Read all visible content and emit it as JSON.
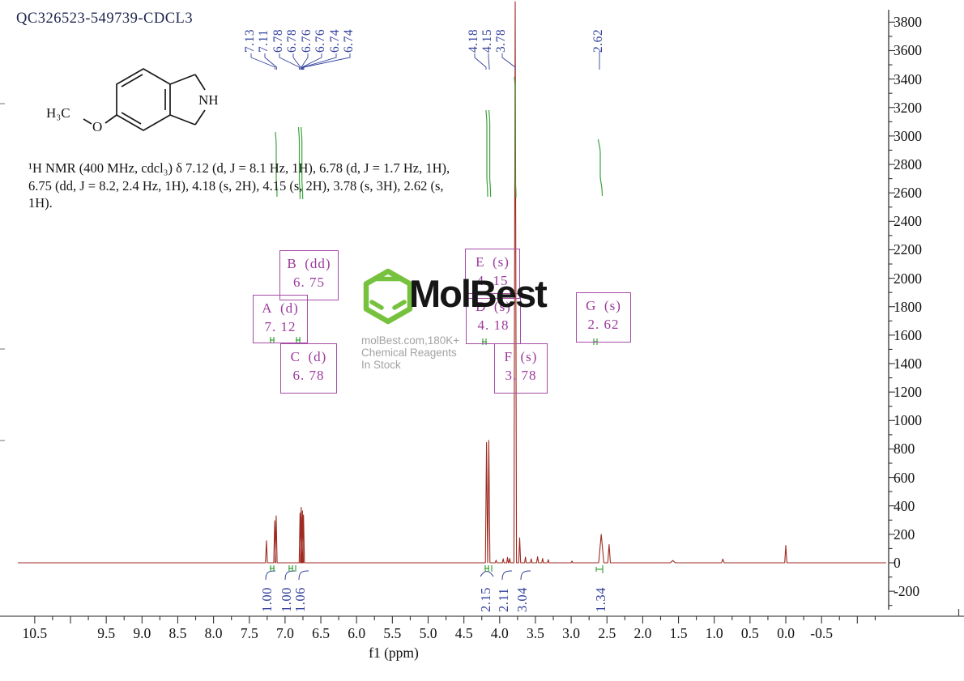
{
  "title": "QC326523-549739-CDCL3",
  "structure": {
    "name-hint": "5-methoxy-2,3-dihydro-1H-isoindole",
    "atom_labels": {
      "methyl": "H₃C",
      "oxygen": "O",
      "amine": "NH"
    }
  },
  "nmr_text": {
    "lines": [
      "¹H NMR (400 MHz, cdcl₃) δ 7.12 (d, J = 8.1 Hz, 1H), 6.78 (d, J = 1.7 Hz, 1H),",
      "6.75 (dd, J = 8.2, 2.4 Hz, 1H), 4.18 (s, 2H), 4.15 (s, 2H), 3.78 (s, 3H), 2.62 (s,",
      "1H)."
    ]
  },
  "peak_labels": {
    "aromatic": [
      "7.13",
      "7.11",
      "6.78",
      "6.78",
      "6.76",
      "6.76",
      "6.74",
      "6.74"
    ],
    "aliphatic": [
      "4.18",
      "4.15",
      "3.78"
    ],
    "amine": [
      "2.62"
    ]
  },
  "annotations": [
    {
      "letter": "A",
      "mult": "(d)",
      "shift": "7. 12"
    },
    {
      "letter": "B",
      "mult": "(dd)",
      "shift": "6. 75"
    },
    {
      "letter": "C",
      "mult": "(d)",
      "shift": "6. 78"
    },
    {
      "letter": "D",
      "mult": "(s)",
      "shift": "4. 18"
    },
    {
      "letter": "E",
      "mult": "(s)",
      "shift": "4. 15"
    },
    {
      "letter": "F",
      "mult": "(s)",
      "shift": "3. 78"
    },
    {
      "letter": "G",
      "mult": "(s)",
      "shift": "2. 62"
    }
  ],
  "watermark": {
    "name": "MolBest",
    "tagline": "molBest.com,180K+ Chemical Reagents In Stock",
    "logo_icon": "benzene-hexagon"
  },
  "axes": {
    "x_title": "f1 (ppm)",
    "x_ticks": [
      {
        "value": 10.5,
        "label": "10.5"
      },
      {
        "value": 9.5,
        "label": "9.5"
      },
      {
        "value": 9.0,
        "label": "9.0"
      },
      {
        "value": 8.5,
        "label": "8.5"
      },
      {
        "value": 8.0,
        "label": "8.0"
      },
      {
        "value": 7.5,
        "label": "7.5"
      },
      {
        "value": 7.0,
        "label": "7.0"
      },
      {
        "value": 6.5,
        "label": "6.5"
      },
      {
        "value": 6.0,
        "label": "6.0"
      },
      {
        "value": 5.5,
        "label": "5.5"
      },
      {
        "value": 5.0,
        "label": "5.0"
      },
      {
        "value": 4.5,
        "label": "4.5"
      },
      {
        "value": 4.0,
        "label": "4.0"
      },
      {
        "value": 3.5,
        "label": "3.5"
      },
      {
        "value": 3.0,
        "label": "3.0"
      },
      {
        "value": 2.5,
        "label": "2.5"
      },
      {
        "value": 2.0,
        "label": "2.0"
      },
      {
        "value": 1.5,
        "label": "1.5"
      },
      {
        "value": 1.0,
        "label": "1.0"
      },
      {
        "value": 0.5,
        "label": "0.5"
      },
      {
        "value": 0.0,
        "label": "0.0"
      },
      {
        "value": -0.5,
        "label": "-0.5"
      }
    ],
    "y_tick_labels": [
      "3800",
      "3600",
      "3400",
      "3200",
      "3000",
      "2800",
      "2600",
      "2400",
      "2200",
      "2000",
      "1800",
      "1600",
      "1400",
      "1200",
      "1000",
      "800",
      "600",
      "400",
      "200",
      "0",
      "-200"
    ]
  },
  "chart_data": {
    "type": "line",
    "title": "QC326523-549739-CDCL3",
    "xlabel": "f1 (ppm)",
    "x_axis": {
      "min": -1.45,
      "max": 11.0,
      "inverted": true,
      "major_tick": 0.5,
      "labeled_from": 10.5,
      "labeled_to": -0.5,
      "unlabeled_values": [
        10.0
      ]
    },
    "y_axis": {
      "min": -400,
      "max": 3800,
      "major_tick": 200,
      "minor_tick": 100
    },
    "peaks_reported": [
      {
        "label": "A",
        "shift": 7.12,
        "mult": "d",
        "J_Hz": [
          8.1
        ],
        "nH": 1
      },
      {
        "label": "C",
        "shift": 6.78,
        "mult": "d",
        "J_Hz": [
          1.7
        ],
        "nH": 1
      },
      {
        "label": "B",
        "shift": 6.75,
        "mult": "dd",
        "J_Hz": [
          8.2,
          2.4
        ],
        "nH": 1
      },
      {
        "label": "D",
        "shift": 4.18,
        "mult": "s",
        "J_Hz": [],
        "nH": 2
      },
      {
        "label": "E",
        "shift": 4.15,
        "mult": "s",
        "J_Hz": [],
        "nH": 2
      },
      {
        "label": "F",
        "shift": 3.78,
        "mult": "s",
        "J_Hz": [],
        "nH": 3
      },
      {
        "label": "G",
        "shift": 2.62,
        "mult": "s",
        "J_Hz": [],
        "nH": 1
      }
    ],
    "integrations": [
      {
        "value": "1.00",
        "ppm": 7.12
      },
      {
        "value": "1.00",
        "ppm": 6.78
      },
      {
        "value": "1.06",
        "ppm": 6.75
      },
      {
        "value": "2.15",
        "ppm": 4.18
      },
      {
        "value": "2.11",
        "ppm": 4.15
      },
      {
        "value": "3.04",
        "ppm": 3.78
      },
      {
        "value": "1.34",
        "ppm": 2.62
      }
    ],
    "trace_peaks": [
      {
        "ppm": 7.26,
        "intensity": 155,
        "w": 1.2
      },
      {
        "ppm": 7.145,
        "intensity": 295,
        "w": 1.2
      },
      {
        "ppm": 7.125,
        "intensity": 330,
        "w": 1.2
      },
      {
        "ppm": 6.79,
        "intensity": 350,
        "w": 1.1
      },
      {
        "ppm": 6.775,
        "intensity": 390,
        "w": 1.1
      },
      {
        "ppm": 6.757,
        "intensity": 365,
        "w": 1.1
      },
      {
        "ppm": 6.742,
        "intensity": 335,
        "w": 1.1
      },
      {
        "ppm": 4.183,
        "intensity": 845,
        "w": 1.4
      },
      {
        "ppm": 4.152,
        "intensity": 860,
        "w": 1.4
      },
      {
        "ppm": 4.05,
        "intensity": 18,
        "w": 1
      },
      {
        "ppm": 3.95,
        "intensity": 28,
        "w": 1
      },
      {
        "ppm": 3.89,
        "intensity": 38,
        "w": 1
      },
      {
        "ppm": 3.86,
        "intensity": 30,
        "w": 1
      },
      {
        "ppm": 3.782,
        "intensity": 4300,
        "w": 1.6
      },
      {
        "ppm": 3.72,
        "intensity": 175,
        "w": 1.2
      },
      {
        "ppm": 3.64,
        "intensity": 40,
        "w": 1
      },
      {
        "ppm": 3.56,
        "intensity": 28,
        "w": 1
      },
      {
        "ppm": 3.47,
        "intensity": 42,
        "w": 1.2
      },
      {
        "ppm": 3.4,
        "intensity": 30,
        "w": 1
      },
      {
        "ppm": 3.32,
        "intensity": 22,
        "w": 1
      },
      {
        "ppm": 2.99,
        "intensity": 12,
        "w": 1
      },
      {
        "ppm": 2.58,
        "intensity": 200,
        "w": 3.2
      },
      {
        "ppm": 2.47,
        "intensity": 128,
        "w": 1.6
      },
      {
        "ppm": 1.58,
        "intensity": 16,
        "w": 3
      },
      {
        "ppm": 0.88,
        "intensity": 26,
        "w": 1.6
      },
      {
        "ppm": 0.0,
        "intensity": 122,
        "w": 1.3
      }
    ]
  },
  "colors": {
    "trace_red": "#9e2a20",
    "label_navy": "#31409b",
    "integral_green": "#3da23d",
    "annotation_purple": "#a64ca6",
    "logo_green": "#76c13e",
    "tagline_gray": "#a3a3a3",
    "axis_gray": "#8f8f8f"
  }
}
